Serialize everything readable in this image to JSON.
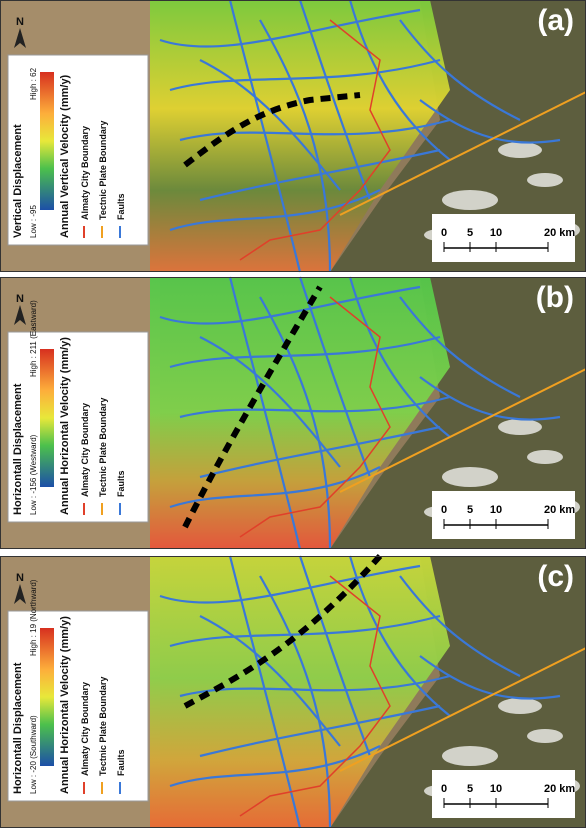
{
  "panels": [
    {
      "label": "(a)",
      "north": "N",
      "legend": {
        "title": "Vertical Displacement",
        "high": "High : 62",
        "low": "Low : -95",
        "velocity": "Annual Vertical Velocity (mm/y)",
        "items": [
          "Almaty City Boundary",
          "Tectnic Plate Boundary",
          "Faults"
        ]
      },
      "scale": [
        "0",
        "5",
        "10",
        "20 km"
      ]
    },
    {
      "label": "(b)",
      "north": "N",
      "legend": {
        "title": "Horizontall Displacement",
        "high": "High : 211 (Eastward)",
        "low": "Low : -156 (Westward)",
        "velocity": "Annual Horizontal Velocity (mm/y)",
        "items": [
          "Almaty City Boundary",
          "Tectnic Plate Boundary",
          "Faults"
        ]
      },
      "scale": [
        "0",
        "5",
        "10",
        "20 km"
      ]
    },
    {
      "label": "(c)",
      "north": "N",
      "legend": {
        "title": "Horizontall Displacement",
        "high": "High : 19 (Northward)",
        "low": "Low : -20 (Southward)",
        "velocity": "Annual Horizontal Velocity (mm/y)",
        "items": [
          "Almaty City Boundary",
          "Tectnic Plate Boundary",
          "Faults"
        ]
      },
      "scale": [
        "0",
        "5",
        "10",
        "20 km"
      ]
    }
  ]
}
